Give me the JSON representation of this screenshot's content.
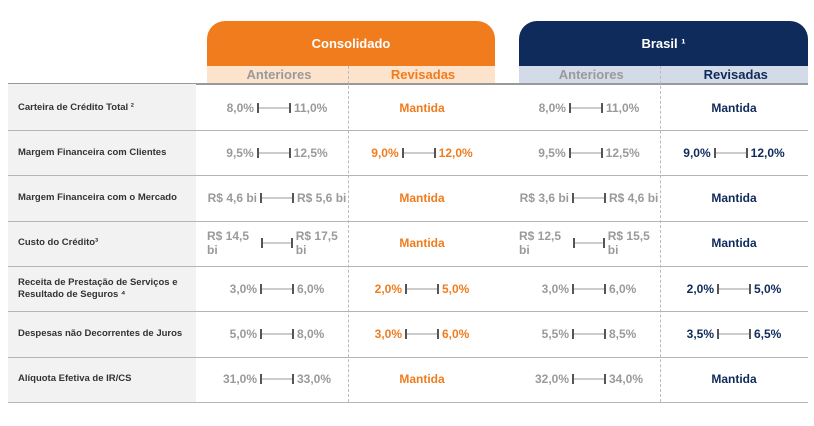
{
  "groups": {
    "consolidado": "Consolidado",
    "brasil": "Brasil ¹"
  },
  "columns": {
    "anteriores": "Anteriores",
    "revisadas": "Revisadas"
  },
  "colors": {
    "orange": "#f07c1e",
    "navy": "#0f2b5b"
  },
  "rows": [
    {
      "label": "Carteira de Crédito Total ²",
      "c_ant": [
        "8,0%",
        "11,0%"
      ],
      "c_rev": "Mantida",
      "b_ant": [
        "8,0%",
        "11,0%"
      ],
      "b_rev": "Mantida"
    },
    {
      "label": "Margem Financeira com Clientes",
      "c_ant": [
        "9,5%",
        "12,5%"
      ],
      "c_rev": [
        "9,0%",
        "12,0%"
      ],
      "b_ant": [
        "9,5%",
        "12,5%"
      ],
      "b_rev": [
        "9,0%",
        "12,0%"
      ]
    },
    {
      "label": "Margem Financeira com o Mercado",
      "c_ant": [
        "R$ 4,6 bi",
        "R$ 5,6 bi"
      ],
      "c_rev": "Mantida",
      "b_ant": [
        "R$ 3,6 bi",
        "R$ 4,6 bi"
      ],
      "b_rev": "Mantida"
    },
    {
      "label": "Custo do Crédito³",
      "c_ant": [
        "R$ 14,5 bi",
        "R$ 17,5 bi"
      ],
      "c_rev": "Mantida",
      "b_ant": [
        "R$ 12,5 bi",
        "R$ 15,5 bi"
      ],
      "b_rev": "Mantida"
    },
    {
      "label": "Receita de Prestação de Serviços e Resultado de Seguros ⁴",
      "c_ant": [
        "3,0%",
        "6,0%"
      ],
      "c_rev": [
        "2,0%",
        "5,0%"
      ],
      "b_ant": [
        "3,0%",
        "6,0%"
      ],
      "b_rev": [
        "2,0%",
        "5,0%"
      ]
    },
    {
      "label": "Despesas não Decorrentes de Juros",
      "c_ant": [
        "5,0%",
        "8,0%"
      ],
      "c_rev": [
        "3,0%",
        "6,0%"
      ],
      "b_ant": [
        "5,5%",
        "8,5%"
      ],
      "b_rev": [
        "3,5%",
        "6,5%"
      ]
    },
    {
      "label": "Alíquota Efetiva de IR/CS",
      "c_ant": [
        "31,0%",
        "33,0%"
      ],
      "c_rev": "Mantida",
      "b_ant": [
        "32,0%",
        "34,0%"
      ],
      "b_rev": "Mantida"
    }
  ]
}
